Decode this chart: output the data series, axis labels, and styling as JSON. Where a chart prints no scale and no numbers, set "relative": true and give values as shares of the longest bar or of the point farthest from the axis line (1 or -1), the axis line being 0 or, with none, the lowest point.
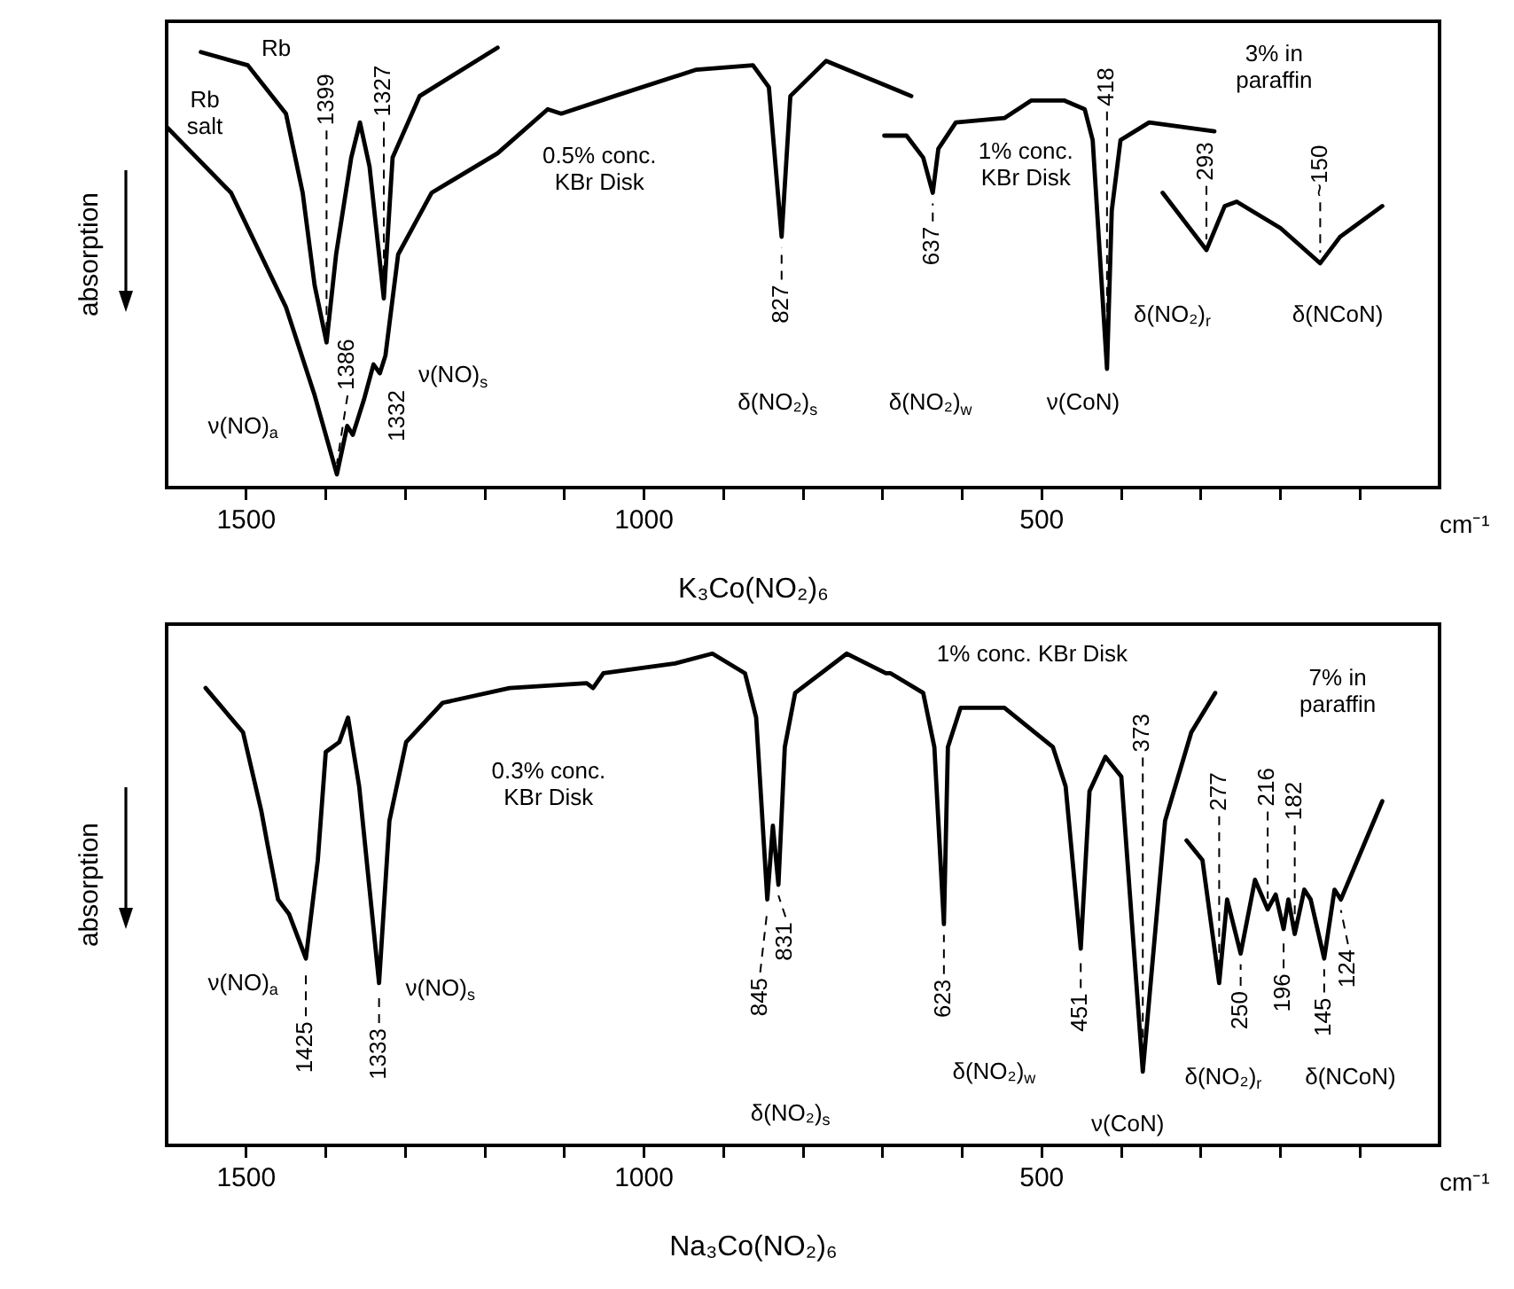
{
  "chart_data": [
    {
      "type": "line",
      "title": "K₃Co(NO₂)₆",
      "xlabel": "cm⁻¹",
      "ylabel": "absorption",
      "relative": true,
      "marker": "none",
      "line_style": "solid",
      "xlim": [
        1600,
        0
      ],
      "xticks": [
        1500,
        {
          "value": 1400,
          "label": null
        },
        {
          "value": 1300,
          "label": null
        },
        {
          "value": 1200,
          "label": null
        },
        {
          "value": 1100,
          "label": null
        },
        1000,
        {
          "value": 900,
          "label": null
        },
        {
          "value": 800,
          "label": null
        },
        {
          "value": 700,
          "label": null
        },
        {
          "value": 600,
          "label": null
        },
        500,
        {
          "value": 400,
          "label": null
        },
        {
          "value": 300,
          "label": null
        },
        {
          "value": 200,
          "label": null
        },
        {
          "value": 100,
          "label": null
        }
      ],
      "series": [
        {
          "color": "#000000",
          "x": [
            1600,
            1519,
            1450,
            1414,
            1386,
            1373,
            1366,
            1352,
            1340,
            1332,
            1325,
            1309,
            1267,
            1184,
            1121,
            1104,
            1037,
            934,
            863,
            843,
            827,
            816,
            771,
            664
          ],
          "values": [
            0.82,
            0.67,
            0.41,
            0.21,
            0.03,
            0.14,
            0.12,
            0.2,
            0.28,
            0.26,
            0.3,
            0.53,
            0.67,
            0.76,
            0.86,
            0.85,
            0.89,
            0.95,
            0.96,
            0.91,
            0.57,
            0.89,
            0.97,
            0.89
          ]
        },
        {
          "color": "#000000",
          "x": [
            698,
            670,
            649,
            637,
            630,
            608,
            547,
            513,
            472,
            446,
            436,
            418,
            412,
            401,
            365,
            283
          ],
          "values": [
            0.8,
            0.8,
            0.75,
            0.67,
            0.77,
            0.83,
            0.84,
            0.88,
            0.88,
            0.86,
            0.79,
            0.27,
            0.63,
            0.79,
            0.83,
            0.81
          ]
        },
        {
          "color": "#000000",
          "x": [
            348,
            293,
            270,
            255,
            200,
            150,
            125,
            72
          ],
          "values": [
            0.67,
            0.54,
            0.64,
            0.65,
            0.59,
            0.51,
            0.57,
            0.64
          ]
        },
        {
          "color": "#000000",
          "x": [
            1557,
            1498,
            1450,
            1429,
            1414,
            1399,
            1387,
            1368,
            1357,
            1345,
            1327,
            1316,
            1282,
            1184
          ],
          "values": [
            0.99,
            0.96,
            0.85,
            0.67,
            0.46,
            0.33,
            0.53,
            0.75,
            0.83,
            0.73,
            0.43,
            0.75,
            0.89,
            1
          ]
        }
      ],
      "annotations": [
        {
          "text": "1399",
          "x": 1399,
          "y": 0.33
        },
        {
          "text": "1327",
          "x": 1327,
          "y": 0.43
        },
        {
          "text": "1386",
          "x": 1386,
          "y": 0.03
        },
        {
          "text": "1332",
          "x": 1332,
          "y": 0.26
        },
        {
          "text": "827",
          "x": 827,
          "y": 0.57
        },
        {
          "text": "637",
          "x": 637,
          "y": 0.67
        },
        {
          "text": "418",
          "x": 418,
          "y": 0.27
        },
        {
          "text": "293",
          "x": 293,
          "y": 0.54
        },
        {
          "text": "~150",
          "x": 150,
          "y": 0.51
        },
        "Rb",
        "Rb salt",
        "ν(NO)$_{a}$",
        "ν(NO)$_{s}$",
        "0.5% conc. KBr Disk",
        "δ(NO₂)$_{s}$",
        "δ(NO₂)$_{w}$",
        "1% conc. KBr Disk",
        "ν(CoN)",
        "δ(NO₂)$_{r}$",
        "δ(NCoN)",
        "3% in paraffin"
      ]
    },
    {
      "type": "line",
      "title": "Na₃Co(NO₂)₆",
      "xlabel": "cm⁻¹",
      "ylabel": "absorption",
      "relative": true,
      "marker": "none",
      "line_style": "solid",
      "xlim": [
        1600,
        0
      ],
      "xticks": [
        1500,
        {
          "value": 1400,
          "label": null
        },
        {
          "value": 1300,
          "label": null
        },
        {
          "value": 1200,
          "label": null
        },
        {
          "value": 1100,
          "label": null
        },
        1000,
        {
          "value": 900,
          "label": null
        },
        {
          "value": 800,
          "label": null
        },
        {
          "value": 700,
          "label": null
        },
        {
          "value": 600,
          "label": null
        },
        500,
        {
          "value": 400,
          "label": null
        },
        {
          "value": 300,
          "label": null
        },
        {
          "value": 200,
          "label": null
        },
        {
          "value": 100,
          "label": null
        }
      ],
      "series": [
        {
          "color": "#000000",
          "x": [
            1551,
            1504,
            1481,
            1473,
            1460,
            1446,
            1425,
            1410,
            1400,
            1383,
            1372,
            1358,
            1333,
            1320,
            1299,
            1253,
            1169,
            1072,
            1064,
            1051,
            961,
            914,
            873,
            859,
            845,
            838,
            831,
            823,
            810,
            745,
            696,
            690,
            649,
            635,
            623,
            618,
            602,
            547,
            486,
            470,
            451,
            440,
            420,
            400,
            373,
            345,
            312,
            282
          ],
          "values": [
            0.93,
            0.84,
            0.68,
            0.61,
            0.5,
            0.47,
            0.38,
            0.58,
            0.8,
            0.82,
            0.87,
            0.73,
            0.33,
            0.66,
            0.82,
            0.9,
            0.93,
            0.94,
            0.93,
            0.96,
            0.98,
            1,
            0.96,
            0.87,
            0.5,
            0.65,
            0.53,
            0.81,
            0.92,
            1,
            0.96,
            0.96,
            0.92,
            0.81,
            0.45,
            0.81,
            0.89,
            0.89,
            0.81,
            0.73,
            0.4,
            0.72,
            0.79,
            0.75,
            0.15,
            0.66,
            0.84,
            0.92
          ]
        },
        {
          "color": "#000000",
          "x": [
            318,
            298,
            277,
            267,
            250,
            232,
            216,
            206,
            196,
            190,
            182,
            170,
            162,
            145,
            132,
            124,
            72
          ],
          "values": [
            0.62,
            0.58,
            0.33,
            0.5,
            0.39,
            0.54,
            0.48,
            0.51,
            0.44,
            0.5,
            0.43,
            0.52,
            0.5,
            0.38,
            0.52,
            0.5,
            0.7
          ]
        }
      ],
      "annotations": [
        {
          "text": "1425",
          "x": 1425,
          "y": 0.38
        },
        {
          "text": "1333",
          "x": 1333,
          "y": 0.33
        },
        {
          "text": "845",
          "x": 845,
          "y": 0.5
        },
        {
          "text": "831",
          "x": 831,
          "y": 0.53
        },
        {
          "text": "623",
          "x": 623,
          "y": 0.45
        },
        {
          "text": "451",
          "x": 451,
          "y": 0.4
        },
        {
          "text": "373",
          "x": 373,
          "y": 0.15
        },
        {
          "text": "277",
          "x": 277,
          "y": 0.33
        },
        {
          "text": "250",
          "x": 250,
          "y": 0.39
        },
        {
          "text": "216",
          "x": 216,
          "y": 0.48
        },
        {
          "text": "196",
          "x": 196,
          "y": 0.44
        },
        {
          "text": "182",
          "x": 182,
          "y": 0.43
        },
        {
          "text": "145",
          "x": 145,
          "y": 0.38
        },
        {
          "text": "124",
          "x": 124,
          "y": 0.5
        },
        "ν(NO)$_{a}$",
        "ν(NO)$_{s}$",
        "0.3% conc. KBr Disk",
        "δ(NO₂)$_{s}$",
        "δ(NO₂)$_{w}$",
        "1% conc. KBr Disk",
        "ν(CoN)",
        "δ(NO₂)$_{r}$",
        "δ(NCoN)",
        "7% in paraffin"
      ]
    }
  ]
}
